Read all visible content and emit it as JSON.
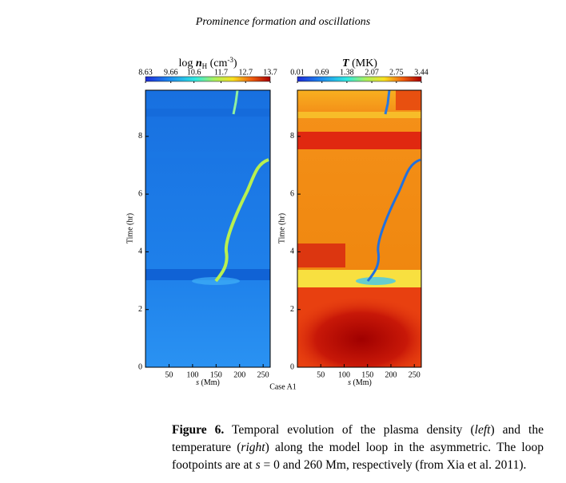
{
  "header": {
    "title": "Prominence formation and oscillations"
  },
  "chart_data": [
    {
      "type": "heatmap",
      "title": [
        "log ",
        "n",
        "H",
        " (cm",
        "-3",
        ")"
      ],
      "xlabel": [
        "s",
        " (Mm)"
      ],
      "ylabel": "Time (hr)",
      "xlim": [
        0,
        265
      ],
      "xticks": [
        50,
        100,
        150,
        200,
        250
      ],
      "ylim": [
        0,
        9.6
      ],
      "yticks": [
        0,
        2,
        4,
        6,
        8
      ],
      "zlim": [
        8.63,
        13.7
      ],
      "zticks": [
        8.63,
        9.66,
        10.6,
        11.7,
        12.7,
        13.7
      ]
    },
    {
      "type": "heatmap",
      "title": [
        "T",
        " (MK)"
      ],
      "xlabel": [
        "s",
        " (Mm)"
      ],
      "ylabel": "Time (hr)",
      "xlim": [
        0,
        265
      ],
      "xticks": [
        50,
        100,
        150,
        200,
        250
      ],
      "ylim": [
        0,
        9.6
      ],
      "yticks": [
        0,
        2,
        4,
        6,
        8
      ],
      "zlim": [
        0.01,
        3.44
      ],
      "zticks": [
        0.01,
        0.69,
        1.38,
        2.07,
        2.75,
        3.44
      ]
    }
  ],
  "case_label": "Case A1",
  "caption": {
    "parts": [
      "Figure 6.",
      " Temporal evolution of the plasma density (",
      "left",
      ") and the temperature (",
      "right",
      ") along the model loop in the asymmetric. The loop footpoints are at ",
      "s",
      " = 0 and 260 Mm, respectively (from Xia et al. 2011)."
    ]
  }
}
